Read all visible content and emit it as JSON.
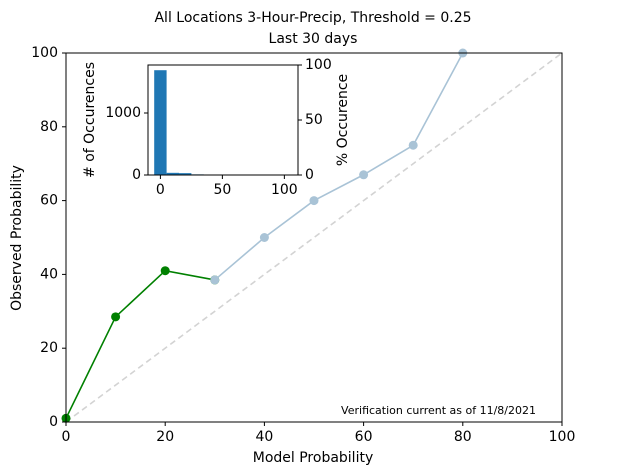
{
  "chart_data": [
    {
      "type": "line",
      "title": "All Locations 3-Hour-Precip, Threshold = 0.25",
      "subtitle": "Last 30 days",
      "xlabel": "Model Probability",
      "ylabel": "Observed Probability",
      "annotation": "Verification current as of 11/8/2021",
      "xlim": [
        0,
        100
      ],
      "ylim": [
        0,
        100
      ],
      "xticks": [
        0,
        20,
        40,
        60,
        80,
        100
      ],
      "yticks": [
        0,
        20,
        40,
        60,
        80,
        100
      ],
      "series": [
        {
          "color": "#008000",
          "x": [
            0,
            10,
            20,
            30
          ],
          "values": [
            1,
            28.5,
            41,
            38.5
          ]
        },
        {
          "color": "#a9c3d6",
          "x": [
            30,
            40,
            50,
            60,
            70,
            80
          ],
          "values": [
            38.5,
            50,
            60,
            67,
            75,
            100
          ]
        }
      ]
    },
    {
      "type": "histogram",
      "ylabel": "# of Occurences",
      "y2label": "% Occurence",
      "color": "#1f77b4",
      "xlim": [
        -10,
        111
      ],
      "ylim": [
        0,
        1774
      ],
      "y2lim": [
        0,
        100
      ],
      "xticks": [
        0,
        50,
        100
      ],
      "yticks": [
        0,
        1000
      ],
      "y2ticks": [
        0,
        50,
        100
      ],
      "bins": [
        -5,
        5,
        15,
        25,
        35,
        45,
        55,
        65,
        75,
        85,
        95,
        105
      ],
      "counts": [
        1690,
        35,
        30,
        10,
        8,
        6,
        5,
        4,
        3,
        0,
        0
      ]
    }
  ]
}
